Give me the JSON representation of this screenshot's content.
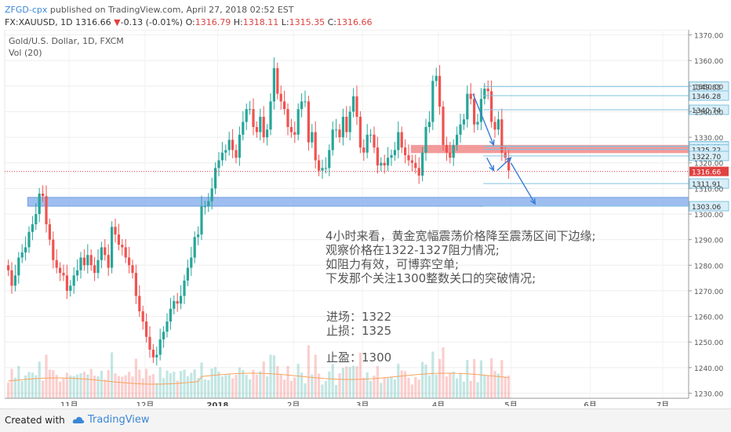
{
  "header": {
    "author": "ZFGD-cpx",
    "published": "published on TradingView.com, April 27, 2018 02:52 EST",
    "symbol": "FX:XAUUSD, 1D",
    "last": "1316.66",
    "change": "-0.13 (-0.01%)",
    "o_label": "O:",
    "o": "1316.79",
    "h_label": "H:",
    "h": "1318.11",
    "l_label": "L:",
    "l": "1315.35",
    "c_label": "C:",
    "c": "1316.66"
  },
  "footer": {
    "created_with": "Created with",
    "brand": "TradingView"
  },
  "chart_data": {
    "type": "candlestick",
    "title": "Gold/U.S. Dollar, 1D, FXCM",
    "indicator": "Vol (20)",
    "ylim": [
      1228,
      1372
    ],
    "y_ticks": [
      1230,
      1240,
      1250,
      1260,
      1270,
      1280,
      1290,
      1300,
      1310,
      1320,
      1330,
      1340,
      1350,
      1360,
      1370
    ],
    "y_tick_labels": [
      "1230.00",
      "1240.00",
      "1250.00",
      "1260.00",
      "1270.00",
      "1280.00",
      "1290.00",
      "1300.00",
      "1310.00",
      "1320.00",
      "1330.00",
      "1340.00",
      "1350.00",
      "1360.00",
      "1370.00"
    ],
    "x_labels": [
      {
        "label": "11月",
        "bar": 18
      },
      {
        "label": "12月",
        "bar": 40
      },
      {
        "label": "2018",
        "bar": 61
      },
      {
        "label": "2月",
        "bar": 83
      },
      {
        "label": "3月",
        "bar": 103
      },
      {
        "label": "4月",
        "bar": 125
      },
      {
        "label": "5月",
        "bar": 146
      },
      {
        "label": "6月",
        "bar": 169
      },
      {
        "label": "7月",
        "bar": 190
      }
    ],
    "closes": [
      1278,
      1272,
      1276,
      1283,
      1285,
      1287,
      1293,
      1296,
      1300,
      1308,
      1307,
      1296,
      1290,
      1282,
      1279,
      1277,
      1276,
      1270,
      1272,
      1276,
      1278,
      1283,
      1280,
      1284,
      1280,
      1277,
      1282,
      1287,
      1284,
      1279,
      1295,
      1292,
      1288,
      1287,
      1283,
      1280,
      1277,
      1268,
      1262,
      1258,
      1252,
      1247,
      1244,
      1245,
      1251,
      1254,
      1258,
      1263,
      1266,
      1265,
      1268,
      1274,
      1279,
      1283,
      1291,
      1292,
      1303,
      1303,
      1305,
      1310,
      1318,
      1321,
      1324,
      1325,
      1329,
      1325,
      1322,
      1331,
      1336,
      1341,
      1341,
      1334,
      1332,
      1338,
      1330,
      1333,
      1344,
      1357,
      1347,
      1344,
      1341,
      1334,
      1332,
      1331,
      1341,
      1344,
      1344,
      1328,
      1332,
      1321,
      1317,
      1318,
      1318,
      1325,
      1333,
      1333,
      1330,
      1338,
      1332,
      1340,
      1346,
      1338,
      1326,
      1324,
      1331,
      1331,
      1326,
      1319,
      1320,
      1319,
      1322,
      1323,
      1325,
      1332,
      1326,
      1323,
      1321,
      1320,
      1318,
      1315,
      1324,
      1334,
      1336,
      1352,
      1354,
      1342,
      1327,
      1324,
      1322,
      1327,
      1331,
      1335,
      1337,
      1347,
      1345,
      1335,
      1336,
      1345,
      1349,
      1348,
      1336,
      1333,
      1337,
      1324,
      1322,
      1317
    ],
    "candle_bar_color_up": "#26a69a",
    "candle_bar_color_down": "#ef5350",
    "last_price": 1316.66,
    "levels": [
      {
        "value": 1349.83,
        "label": "1349.83"
      },
      {
        "value": 1346.28,
        "label": "1346.28"
      },
      {
        "value": 1340.74,
        "label": "1340.74"
      },
      {
        "value": 1326.5,
        "label": "1326.50"
      },
      {
        "value": 1326.43,
        "label": "1326.43"
      },
      {
        "value": 1325.22,
        "label": "1325.22"
      },
      {
        "value": 1322.7,
        "label": "1322.70"
      },
      {
        "value": 1311.91,
        "label": "1311.91"
      },
      {
        "value": 1303.06,
        "label": "1303.06"
      }
    ],
    "last_price_label": "1316.66",
    "resistance_zone": [
      1323.8,
      1327.0
    ],
    "support_zone": [
      1303.06,
      1306.5
    ],
    "forecast_arrows": [
      {
        "from": [
          135,
          1347
        ],
        "to": [
          141,
          1327
        ]
      },
      {
        "from": [
          139,
          1322
        ],
        "to": [
          141,
          1317
        ]
      },
      {
        "from": [
          142,
          1317
        ],
        "to": [
          146,
          1322
        ]
      },
      {
        "from": [
          146,
          1320
        ],
        "to": [
          153,
          1304
        ]
      }
    ],
    "annotation_lines": [
      "4小时来看，黄金宽幅震荡价格降至震荡区间下边缘;",
      "观察价格在1322-1327阻力情况;",
      "如阻力有效，可博弈空单;",
      "下发那个关注1300整数关口的突破情况;"
    ],
    "trade_lines": [
      "进场：1322",
      "止损：1325",
      "止盈：1300"
    ]
  }
}
